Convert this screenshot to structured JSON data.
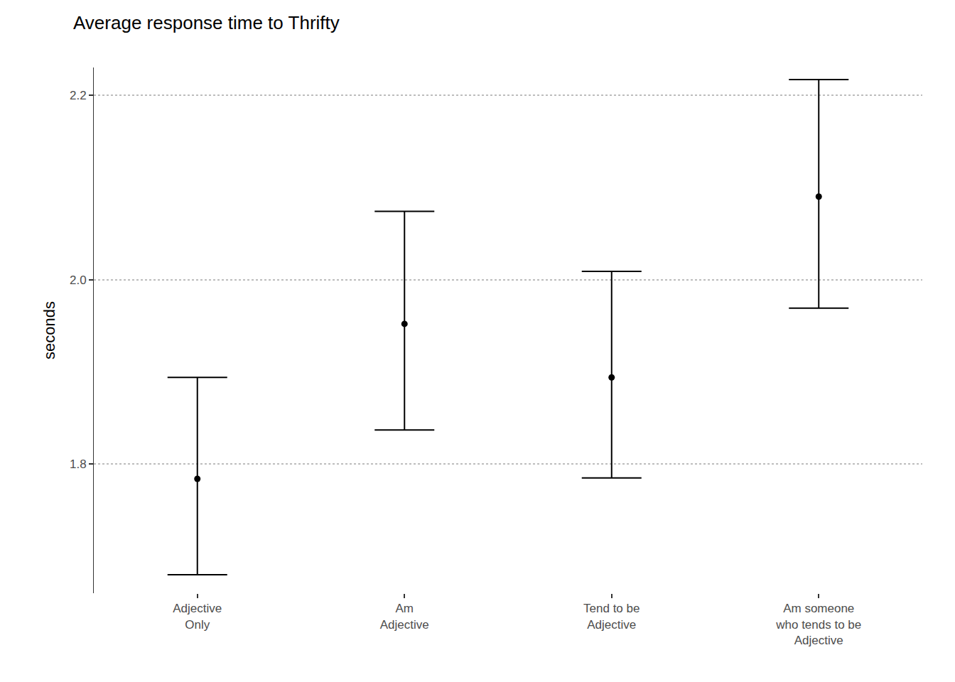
{
  "chart_data": {
    "type": "scatter",
    "title": "Average response time to Thrifty",
    "y_label": "seconds",
    "categories": [
      "Adjective\nOnly",
      "Am\nAdjective",
      "Tend to be\nAdjective",
      "Am someone\nwho tends to be\nAdjective"
    ],
    "values": [
      1.784,
      1.952,
      1.894,
      2.09
    ],
    "lower": [
      1.68,
      1.837,
      1.785,
      1.969
    ],
    "upper": [
      1.894,
      2.074,
      2.009,
      2.217
    ],
    "color": "#000000",
    "marker": "circle",
    "ylim": [
      1.66,
      2.23
    ],
    "yticks": [
      1.8,
      {
        "value": 2,
        "label": "2.0"
      },
      2.2
    ],
    "grid": true
  }
}
